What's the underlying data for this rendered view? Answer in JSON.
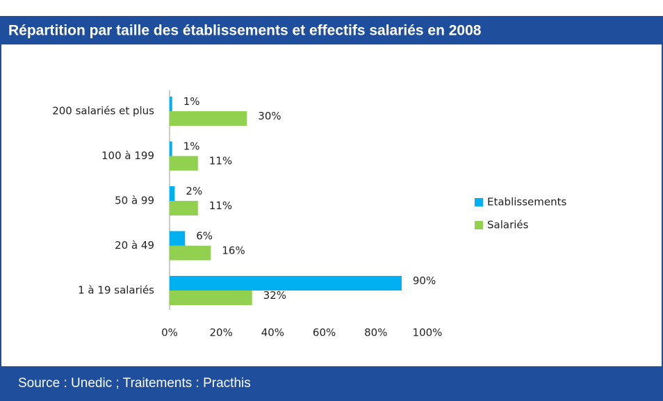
{
  "chart_data": {
    "type": "barh",
    "title": "Répartition par taille des établissements et effectifs salariés en 2008",
    "source": "Source : Unedic ; Traitements : Practhis",
    "categories": [
      "200 salariés et plus",
      "100 à 199",
      "50 à 99",
      "20 à 49",
      "1 à 19 salariés"
    ],
    "series": [
      {
        "name": "Etablissements",
        "color": "#00b0f0",
        "values": [
          1,
          1,
          2,
          6,
          90
        ],
        "value_labels": [
          "1%",
          "1%",
          "2%",
          "6%",
          "90%"
        ]
      },
      {
        "name": "Salariés",
        "color": "#92d050",
        "values": [
          30,
          11,
          11,
          16,
          32
        ],
        "value_labels": [
          "30%",
          "11%",
          "11%",
          "16%",
          "32%"
        ]
      }
    ],
    "xlim": [
      0,
      100
    ],
    "xticks": [
      {
        "value": 0,
        "label": "0%"
      },
      {
        "value": 20,
        "label": "20%"
      },
      {
        "value": 40,
        "label": "40%"
      },
      {
        "value": 60,
        "label": "60%"
      },
      {
        "value": 80,
        "label": "80%"
      },
      {
        "value": 100,
        "label": "100%"
      }
    ],
    "legend": "right"
  }
}
